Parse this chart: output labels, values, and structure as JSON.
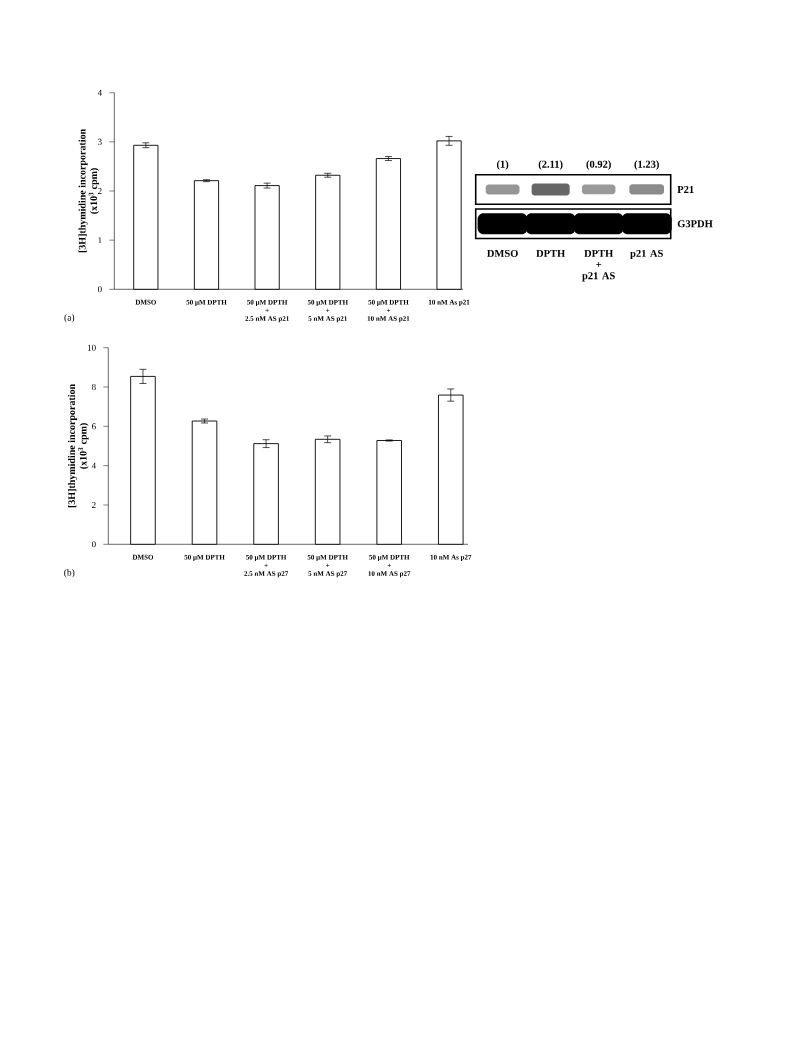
{
  "chart_data": [
    {
      "type": "bar",
      "categories": [
        "DMSO",
        "50 µM DPTH",
        "50 µM DPTH + 2.5 nM AS p21",
        "50 µM DPTH + 5 nM AS p21",
        "50 µM DPTH + 10 nM AS p21",
        "10 nM As p21"
      ],
      "values": [
        2.93,
        2.21,
        2.11,
        2.32,
        2.66,
        3.02
      ],
      "errors": [
        0.05,
        0.02,
        0.05,
        0.04,
        0.04,
        0.09
      ],
      "color": "#ffffff",
      "ylim": [
        0,
        4
      ],
      "yticks": [
        0,
        1,
        2,
        3,
        4
      ],
      "ylabel": "[3H]thymidine incorporation (x10$^{3}$ cpm)",
      "annotations": [
        "(a)"
      ]
    },
    {
      "type": "other",
      "categories": [
        "DMSO",
        "DPTH",
        "DPTH + p21 AS",
        "p21 AS"
      ],
      "y_categories": [
        "P21",
        "G3PDH"
      ],
      "values": [
        1,
        2.11,
        0.92,
        1.23
      ],
      "value_labels": [
        "(1)",
        "(2.11)",
        "(0.92)",
        "(1.23)"
      ]
    },
    {
      "type": "bar",
      "categories": [
        "DMSO",
        "50 µM DPTH",
        "50 µM DPTH + 2.5 nM AS p27",
        "50 µM DPTH + 5 nM AS p27",
        "50 µM DPTH + 10 nM AS p27",
        "10 nM As p27"
      ],
      "values": [
        8.54,
        6.27,
        5.12,
        5.34,
        5.28,
        7.59
      ],
      "errors": [
        0.36,
        0.1,
        0.2,
        0.17,
        0.03,
        0.31
      ],
      "color": "#ffffff",
      "ylim": [
        0,
        10
      ],
      "yticks": [
        0,
        2,
        4,
        6,
        8,
        10
      ],
      "ylabel": "[3H]thymidine incorporation (x10$^{3}$ cpm)",
      "annotations": [
        "(b)"
      ]
    }
  ]
}
